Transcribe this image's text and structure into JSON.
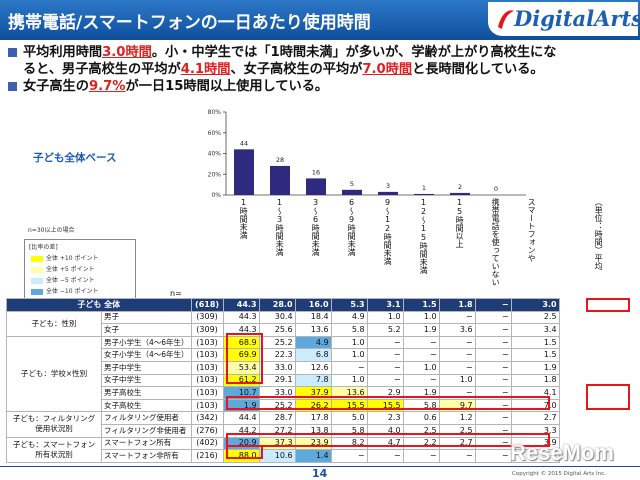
{
  "header": {
    "title": "携帯電話/スマートフォンの一日あたり使用時間",
    "logo": "DigitalArts"
  },
  "bullets": [
    {
      "parts": [
        {
          "t": "平均利用時間"
        },
        {
          "t": "3.0時間",
          "hl": true
        },
        {
          "t": "。小・中学生では「1時間未満」が多いが、学齢が上がり高校生にな"
        }
      ]
    },
    {
      "indent": true,
      "parts": [
        {
          "t": "ると、男子高校生の平均が"
        },
        {
          "t": "4.1時間",
          "hl": true
        },
        {
          "t": "、女子高校生の平均が"
        },
        {
          "t": "7.0時間",
          "hl": true
        },
        {
          "t": "と長時間化している。"
        }
      ]
    },
    {
      "parts": [
        {
          "t": "女子高生の"
        },
        {
          "t": "9.7%",
          "hl": true
        },
        {
          "t": "が一日15時間以上使用している。"
        }
      ]
    }
  ],
  "side_label": "子ども全体ベース",
  "sample_note": "n=30以上の場合",
  "legend": {
    "title": "[比率の差]",
    "items": [
      {
        "label": "全体 +10 ポイント",
        "color": "#ffff00"
      },
      {
        "label": "全体 +5 ポイント",
        "color": "#ffffaa"
      },
      {
        "label": "全体 −5 ポイント",
        "color": "#ccebff"
      },
      {
        "label": "全体 −10 ポイント",
        "color": "#5fa8dc"
      }
    ]
  },
  "columns": [
    "1時間未満",
    "1〜3時間未満",
    "3〜6時間未満",
    "6〜9時間未満",
    "9〜12時間未満",
    "12〜15時間未満",
    "15時間以上",
    "携帯電話を使っていない",
    "スマートフォンや",
    "（単位：時間）平均"
  ],
  "n_label": "n=",
  "chart_data": {
    "type": "bar",
    "categories": [
      "1時間未満",
      "1〜3時間未満",
      "3〜6時間未満",
      "6〜9時間未満",
      "9〜12時間未満",
      "12〜15時間未満",
      "15時間以上",
      "スマートフォンや携帯電話を使っていない"
    ],
    "values": [
      44,
      28,
      16,
      5,
      3,
      1,
      2,
      0
    ],
    "yticks": [
      "0%",
      "20%",
      "40%",
      "60%",
      "80%"
    ],
    "ylim": [
      0,
      80
    ],
    "bar_color": "#2d2a80"
  },
  "table": {
    "rows": [
      {
        "cat": "子ども 全体",
        "sub": "",
        "n": "(618)",
        "v": [
          "44.3",
          "28.0",
          "16.0",
          "5.3",
          "3.1",
          "1.5",
          "1.8",
          "−",
          "3.0"
        ],
        "all": true
      },
      {
        "cat": "子ども：性別",
        "sub": "男子",
        "n": "(309)",
        "v": [
          "44.3",
          "30.4",
          "18.4",
          "4.9",
          "1.0",
          "1.0",
          "−",
          "−",
          "2.5"
        ]
      },
      {
        "cat": "",
        "sub": "女子",
        "n": "(309)",
        "v": [
          "44.3",
          "25.6",
          "13.6",
          "5.8",
          "5.2",
          "1.9",
          "3.6",
          "−",
          "3.4"
        ]
      },
      {
        "cat": "子ども：学校×性別",
        "sub": "男子小学生（4〜6年生）",
        "n": "(103)",
        "v": [
          "68.9",
          "25.2",
          "4.9",
          "1.0",
          "−",
          "−",
          "−",
          "−",
          "1.5"
        ],
        "cls": [
          "y10",
          "",
          "b10",
          "",
          "",
          "",
          "",
          "",
          ""
        ]
      },
      {
        "cat": "",
        "sub": "女子小学生（4〜6年生）",
        "n": "(103)",
        "v": [
          "69.9",
          "22.3",
          "6.8",
          "1.0",
          "−",
          "−",
          "−",
          "−",
          "1.5"
        ],
        "cls": [
          "y10",
          "",
          "b5",
          "",
          "",
          "",
          "",
          "",
          ""
        ]
      },
      {
        "cat": "",
        "sub": "男子中学生",
        "n": "(103)",
        "v": [
          "53.4",
          "33.0",
          "12.6",
          "−",
          "−",
          "1.0",
          "−",
          "−",
          "1.9"
        ],
        "cls": [
          "y5",
          "",
          "",
          "",
          "",
          "",
          "",
          "",
          ""
        ]
      },
      {
        "cat": "",
        "sub": "女子中学生",
        "n": "(103)",
        "v": [
          "61.2",
          "29.1",
          "7.8",
          "1.0",
          "−",
          "−",
          "1.0",
          "−",
          "1.8"
        ],
        "cls": [
          "y10",
          "",
          "b5",
          "",
          "",
          "",
          "",
          "",
          ""
        ]
      },
      {
        "cat": "",
        "sub": "男子高校生",
        "n": "(103)",
        "v": [
          "10.7",
          "33.0",
          "37.9",
          "13.6",
          "2.9",
          "1.9",
          "−",
          "−",
          "4.1"
        ],
        "cls": [
          "b10",
          "",
          "y10",
          "y5",
          "",
          "",
          "",
          "",
          ""
        ]
      },
      {
        "cat": "",
        "sub": "女子高校生",
        "n": "(103)",
        "v": [
          "1.9",
          "25.2",
          "26.2",
          "15.5",
          "15.5",
          "5.8",
          "9.7",
          "−",
          "7.0"
        ],
        "cls": [
          "b10",
          "",
          "y10",
          "y10",
          "y10",
          "",
          "y5",
          "",
          ""
        ]
      },
      {
        "cat": "子ども：フィルタリング",
        "sub": "フィルタリング使用者",
        "n": "(342)",
        "v": [
          "44.4",
          "28.7",
          "17.8",
          "5.0",
          "2.3",
          "0.6",
          "1.2",
          "−",
          "2.7"
        ]
      },
      {
        "cat": "使用状況別",
        "sub": "フィルタリング非使用者",
        "n": "(276)",
        "v": [
          "44.2",
          "27.2",
          "13.8",
          "5.8",
          "4.0",
          "2.5",
          "2.5",
          "−",
          "3.3"
        ]
      },
      {
        "cat": "子ども：スマートフォン",
        "sub": "スマートフォン所有",
        "n": "(402)",
        "v": [
          "20.9",
          "37.3",
          "23.9",
          "8.2",
          "4.7",
          "2.2",
          "2.7",
          "−",
          "3.9"
        ],
        "cls": [
          "b10",
          "y5",
          "y5",
          "",
          "",
          "",
          "",
          "",
          ""
        ]
      },
      {
        "cat": "所有状況別",
        "sub": "スマートフォン非所有",
        "n": "(216)",
        "v": [
          "88.0",
          "10.6",
          "1.4",
          "−",
          "−",
          "−",
          "−",
          "−",
          "−"
        ],
        "cls": [
          "y10",
          "b5",
          "b10",
          "",
          "",
          "",
          "",
          "",
          ""
        ]
      }
    ]
  },
  "footer": {
    "page": "14",
    "copyright": "Copyright © 2015 Digital Arts Inc.",
    "watermark": "ReseMom"
  }
}
